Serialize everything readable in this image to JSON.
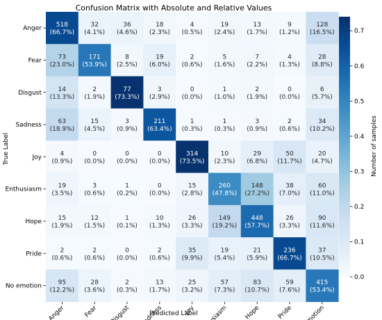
{
  "chart_data": {
    "type": "heatmap",
    "title": "Confusion Matrix with Absolute and Relative Values",
    "xlabel": "Predicted Label",
    "ylabel": "True Label",
    "colorbar_label": "Number of samples",
    "colorbar_range": [
      0.0,
      0.74
    ],
    "colorbar_ticks": [
      "0.0",
      "0.1",
      "0.2",
      "0.3",
      "0.4",
      "0.5",
      "0.6",
      "0.7"
    ],
    "colormap": "Blues",
    "colormap_stops": [
      "#f7fbff",
      "#deebf7",
      "#c6dbef",
      "#9ecae1",
      "#6baed6",
      "#4292c6",
      "#2171b5",
      "#08519c",
      "#08306b"
    ],
    "text_light_color": "#ffffff",
    "text_dark_color": "#262626",
    "categories": [
      "Anger",
      "Fear",
      "Disgust",
      "Sadness",
      "Joy",
      "Enthusiasm",
      "Hope",
      "Pride",
      "No emotion"
    ],
    "counts": [
      [
        518,
        32,
        36,
        18,
        4,
        19,
        13,
        9,
        128
      ],
      [
        73,
        171,
        8,
        19,
        2,
        5,
        7,
        4,
        28
      ],
      [
        14,
        2,
        77,
        3,
        0,
        1,
        2,
        0,
        6
      ],
      [
        63,
        15,
        3,
        211,
        1,
        1,
        3,
        2,
        34
      ],
      [
        4,
        0,
        0,
        0,
        314,
        10,
        29,
        50,
        20
      ],
      [
        19,
        3,
        1,
        0,
        15,
        260,
        148,
        38,
        60
      ],
      [
        15,
        12,
        1,
        10,
        26,
        149,
        448,
        26,
        90
      ],
      [
        2,
        2,
        0,
        2,
        35,
        19,
        21,
        236,
        37
      ],
      [
        95,
        28,
        2,
        13,
        25,
        57,
        83,
        59,
        415
      ]
    ],
    "percentages": [
      [
        "66.7%",
        "4.1%",
        "4.6%",
        "2.3%",
        "0.5%",
        "2.4%",
        "1.7%",
        "1.2%",
        "16.5%"
      ],
      [
        "23.0%",
        "53.9%",
        "2.5%",
        "6.0%",
        "0.6%",
        "1.6%",
        "2.2%",
        "1.3%",
        "8.8%"
      ],
      [
        "13.3%",
        "1.9%",
        "73.3%",
        "2.9%",
        "0.0%",
        "1.0%",
        "1.9%",
        "0.0%",
        "5.7%"
      ],
      [
        "18.9%",
        "4.5%",
        "0.9%",
        "63.4%",
        "0.3%",
        "0.3%",
        "0.9%",
        "0.6%",
        "10.2%"
      ],
      [
        "0.9%",
        "0.0%",
        "0.0%",
        "0.0%",
        "73.5%",
        "2.3%",
        "6.8%",
        "11.7%",
        "4.7%"
      ],
      [
        "3.5%",
        "0.6%",
        "0.2%",
        "0.0%",
        "2.8%",
        "47.8%",
        "27.2%",
        "7.0%",
        "11.0%"
      ],
      [
        "1.9%",
        "1.5%",
        "0.1%",
        "1.3%",
        "3.3%",
        "19.2%",
        "57.7%",
        "3.3%",
        "11.6%"
      ],
      [
        "0.6%",
        "0.6%",
        "0.0%",
        "0.6%",
        "9.9%",
        "5.4%",
        "5.9%",
        "66.7%",
        "10.5%"
      ],
      [
        "12.2%",
        "3.6%",
        "0.3%",
        "1.7%",
        "3.2%",
        "7.3%",
        "10.7%",
        "7.6%",
        "53.4%"
      ]
    ]
  }
}
